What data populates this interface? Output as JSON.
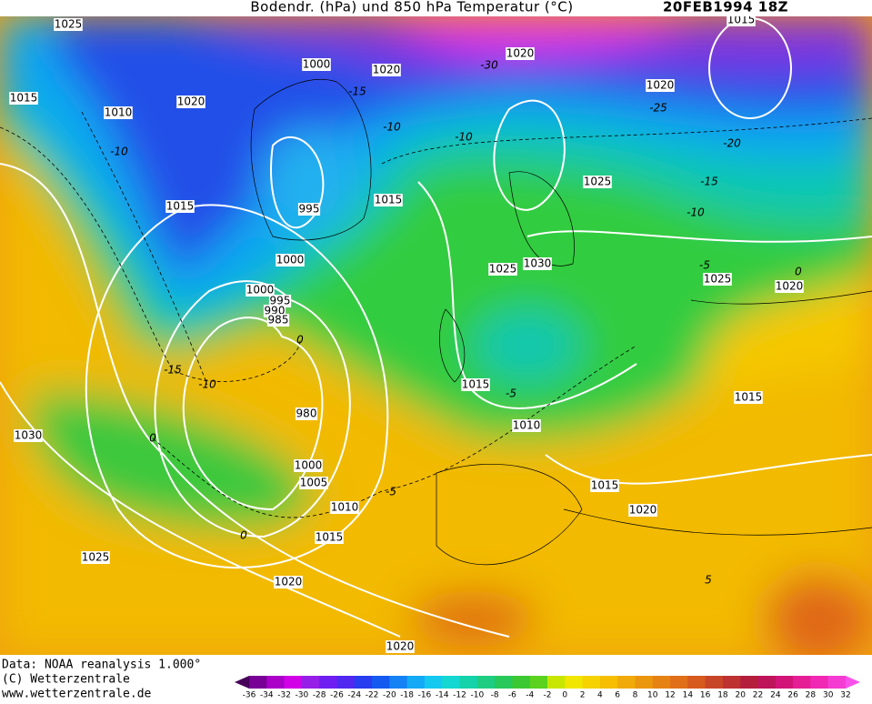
{
  "header": {
    "title": "Bodendr. (hPa) und 850 hPa Temperatur (°C)",
    "date": "20FEB1994 18Z"
  },
  "isobar_labels": [
    "1025",
    "1015",
    "1020",
    "1020",
    "1000",
    "1020",
    "1015",
    "1010",
    "1020",
    "1015",
    "995",
    "1015",
    "1025",
    "1000",
    "1025",
    "1030",
    "1025",
    "1020",
    "1000",
    "995",
    "990",
    "985",
    "1015",
    "1015",
    "980",
    "1010",
    "1030",
    "1000",
    "1005",
    "1015",
    "1010",
    "1020",
    "1015",
    "1025",
    "1020",
    "1020"
  ],
  "temperature_labels": [
    "-30",
    "-15",
    "-25",
    "-10",
    "-20",
    "-15",
    "-10",
    "-10",
    "-10",
    "-5",
    "0",
    "-15",
    "-10",
    "0",
    "0",
    "-5",
    "5",
    "0",
    "-5"
  ],
  "footer": {
    "source": "Data: NOAA reanalysis 1.000°",
    "copyright": "(C) Wetterzentrale",
    "url": "www.wetterzentrale.de"
  },
  "colorbar": {
    "ticks": [
      -36,
      -34,
      -32,
      -30,
      -28,
      -26,
      -24,
      -22,
      -20,
      -18,
      -16,
      -14,
      -12,
      -10,
      -8,
      -6,
      -4,
      -2,
      0,
      2,
      4,
      6,
      8,
      10,
      12,
      14,
      16,
      18,
      20,
      22,
      24,
      26,
      28,
      30,
      32
    ]
  }
}
